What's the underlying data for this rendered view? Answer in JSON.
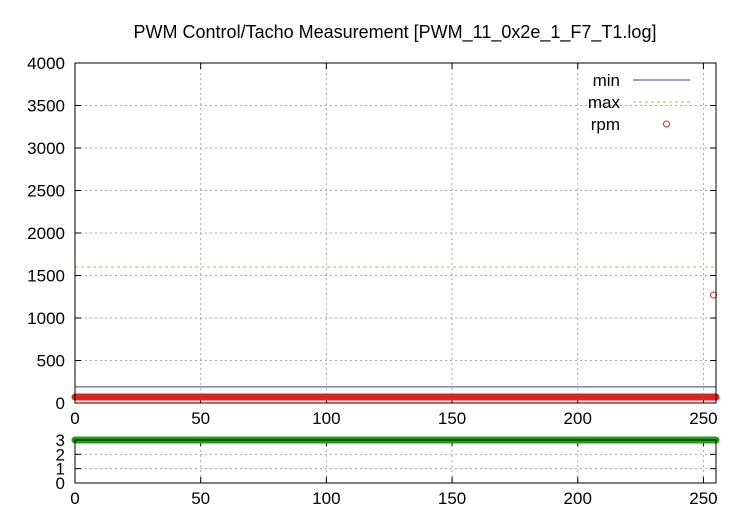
{
  "chart_data": [
    {
      "type": "line",
      "title": "PWM Control/Tacho Measurement [PWM_11_0x2e_1_F7_T1.log]",
      "xlabel": "",
      "ylabel": "",
      "xlim": [
        0,
        255
      ],
      "ylim": [
        0,
        4000
      ],
      "xticks": [
        0,
        50,
        100,
        150,
        200,
        250
      ],
      "yticks": [
        0,
        500,
        1000,
        1500,
        2000,
        2500,
        3000,
        3500,
        4000
      ],
      "grid": true,
      "legend_position": "top-right",
      "series": [
        {
          "name": "min",
          "style": "line",
          "color": "#3a3f8f",
          "x": [
            0,
            255
          ],
          "values": [
            190,
            190
          ]
        },
        {
          "name": "max",
          "style": "dashed",
          "color": "#f0a040",
          "x": [
            0,
            255
          ],
          "values": [
            1600,
            1600
          ]
        },
        {
          "name": "rpm",
          "style": "points",
          "color": "#dd2222",
          "x": [
            0,
            255
          ],
          "values": [
            70,
            70
          ],
          "outlier": {
            "x": 254,
            "value": 1270
          }
        }
      ]
    },
    {
      "type": "line",
      "title": "",
      "xlabel": "",
      "ylabel": "",
      "xlim": [
        0,
        255
      ],
      "ylim": [
        0,
        3
      ],
      "xticks": [
        0,
        50,
        100,
        150,
        200,
        250
      ],
      "yticks": [
        0,
        1,
        2,
        3
      ],
      "grid": true,
      "series": [
        {
          "style": "points",
          "color": "#22a010",
          "x": [
            0,
            255
          ],
          "values": [
            3,
            3
          ]
        }
      ]
    }
  ]
}
